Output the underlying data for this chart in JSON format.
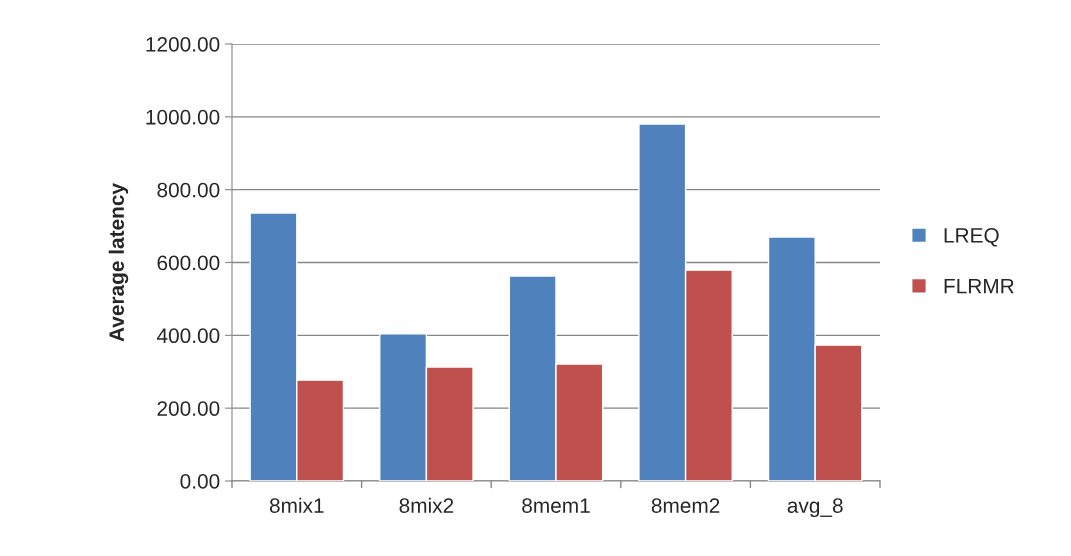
{
  "chart_data": {
    "type": "bar",
    "ylabel": "Average latency",
    "categories": [
      "8mix1",
      "8mix2",
      "8mem1",
      "8mem2",
      "avg_8"
    ],
    "series": [
      {
        "name": "LREQ",
        "color": "#4f81bd",
        "values": [
          736,
          404,
          563,
          980,
          670
        ]
      },
      {
        "name": "FLRMR",
        "color": "#c0504d",
        "values": [
          277,
          313,
          321,
          579,
          373
        ]
      }
    ],
    "ylim": [
      0,
      1200
    ],
    "yticks": [
      {
        "value": 0,
        "label": "0.00"
      },
      {
        "value": 200,
        "label": "200.00"
      },
      {
        "value": 400,
        "label": "400.00"
      },
      {
        "value": 600,
        "label": "600.00"
      },
      {
        "value": 800,
        "label": "800.00"
      },
      {
        "value": 1000,
        "label": "1000.00"
      },
      {
        "value": 1200,
        "label": "1200.00"
      }
    ],
    "grid": "y",
    "legend": "right"
  }
}
